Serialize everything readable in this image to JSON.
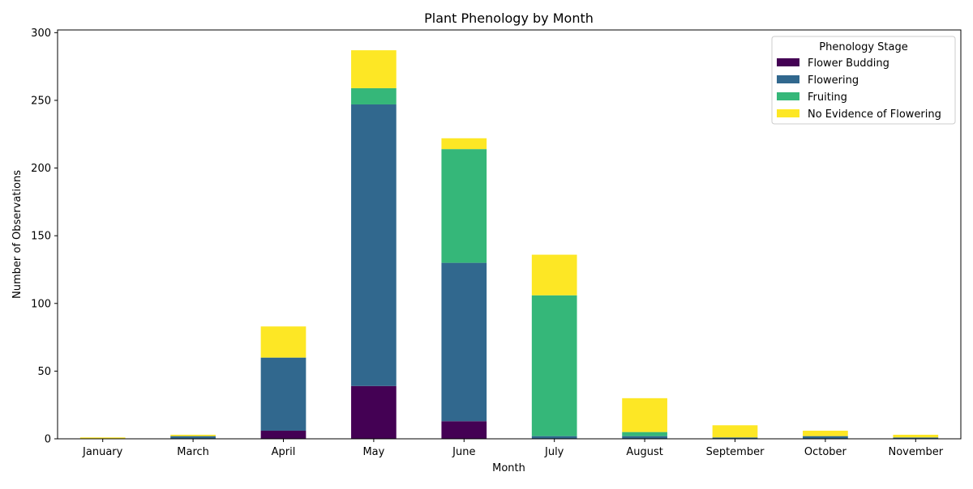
{
  "chart_data": {
    "type": "bar",
    "stacked": true,
    "title": "Plant Phenology by Month",
    "xlabel": "Month",
    "ylabel": "Number of Observations",
    "categories": [
      "January",
      "March",
      "April",
      "May",
      "June",
      "July",
      "August",
      "September",
      "October",
      "November"
    ],
    "series": [
      {
        "name": "Flower Budding",
        "color": "#440154",
        "values": [
          0,
          0,
          6,
          39,
          13,
          0,
          0,
          0,
          0,
          0
        ]
      },
      {
        "name": "Flowering",
        "color": "#31688e",
        "values": [
          0,
          2,
          54,
          208,
          117,
          2,
          2,
          1,
          2,
          1
        ]
      },
      {
        "name": "Fruiting",
        "color": "#35b779",
        "values": [
          0,
          0,
          0,
          12,
          84,
          104,
          3,
          0,
          0,
          0
        ]
      },
      {
        "name": "No Evidence of Flowering",
        "color": "#fde725",
        "values": [
          1,
          1,
          23,
          28,
          8,
          30,
          25,
          9,
          4,
          2
        ]
      }
    ],
    "ylim": [
      0,
      302
    ],
    "yticks": [
      0,
      50,
      100,
      150,
      200,
      250,
      300
    ],
    "legend": {
      "title": "Phenology Stage",
      "placement": "top-right"
    },
    "grid": false
  }
}
